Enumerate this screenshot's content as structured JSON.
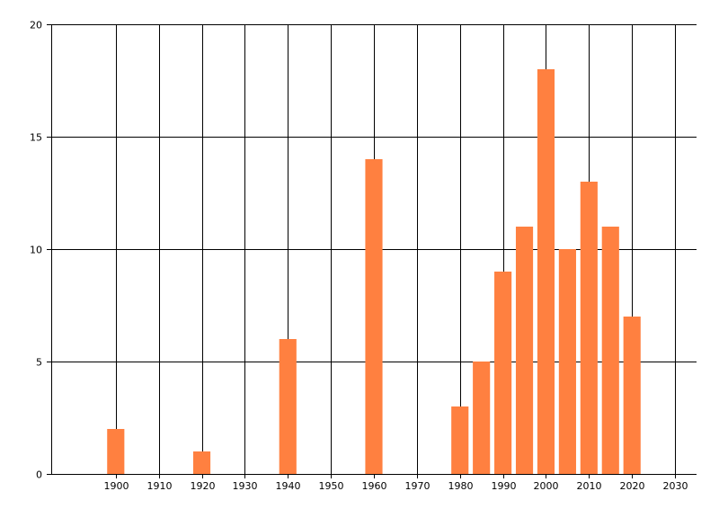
{
  "chart_data": {
    "type": "bar",
    "x": [
      1900,
      1920,
      1940,
      1960,
      1980,
      1985,
      1990,
      1995,
      2000,
      2005,
      2010,
      2015,
      2020
    ],
    "values": [
      2,
      1,
      6,
      14,
      3,
      5,
      9,
      11,
      18,
      10,
      13,
      11,
      7
    ],
    "bar_width": 4,
    "xlim": [
      1885,
      2035
    ],
    "ylim": [
      0,
      20
    ],
    "x_ticks": [
      "1900",
      "1910",
      "1920",
      "1930",
      "1940",
      "1950",
      "1960",
      "1970",
      "1980",
      "1990",
      "2000",
      "2010",
      "2020",
      "2030"
    ],
    "y_ticks": [
      "0",
      "5",
      "10",
      "15",
      "20"
    ],
    "grid": true,
    "bar_color": "#FF8040",
    "title": "",
    "xlabel": "",
    "ylabel": ""
  }
}
